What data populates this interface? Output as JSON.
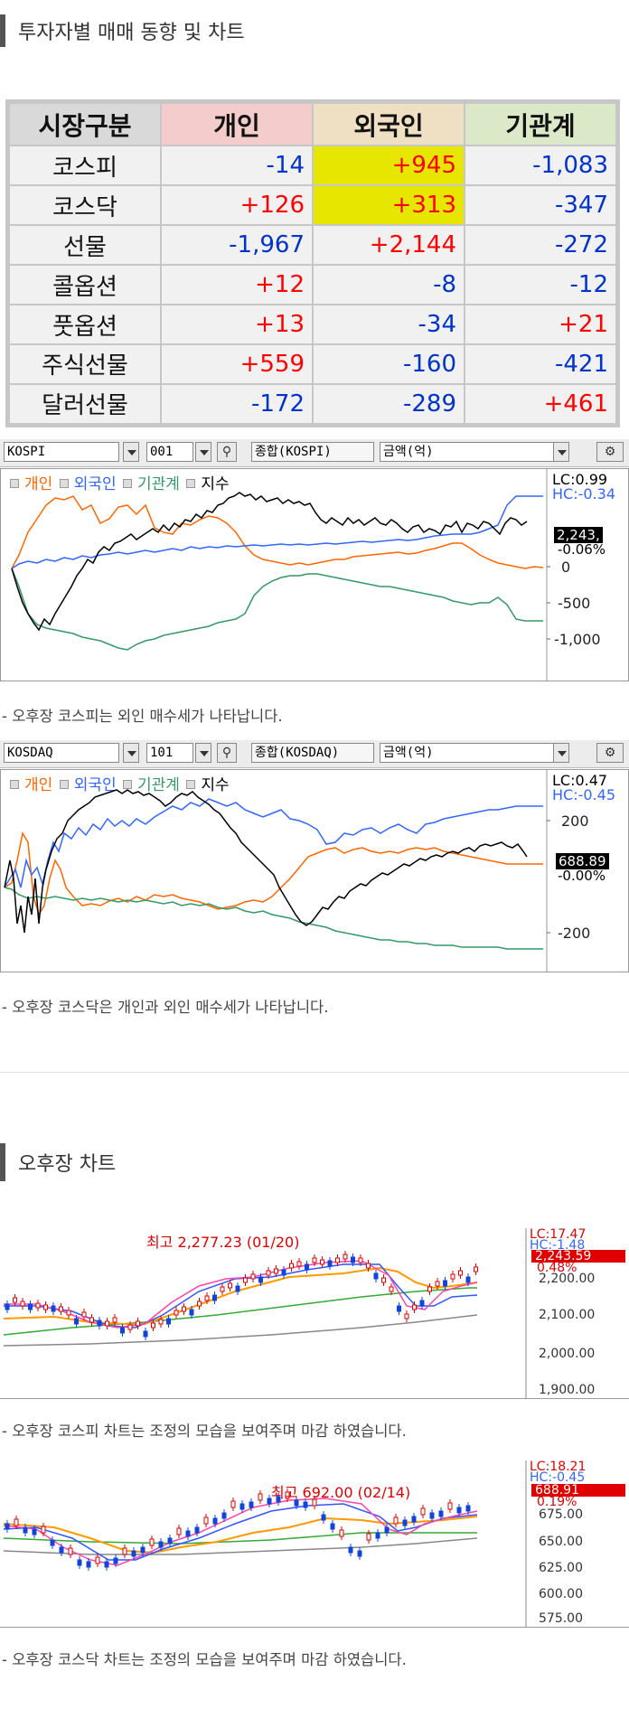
{
  "section1": {
    "title": "투자자별 매매 동향 및 차트"
  },
  "investor_table": {
    "headers": [
      "시장구분",
      "개인",
      "외국인",
      "기관계"
    ],
    "header_colors": [
      "#d9d9d9",
      "#f4cccc",
      "#efe0c4",
      "#dce9c9"
    ],
    "rows": [
      {
        "label": "코스피",
        "cells": [
          "-14",
          "+945",
          "-1,083"
        ],
        "highlight": [
          false,
          true,
          false
        ]
      },
      {
        "label": "코스닥",
        "cells": [
          "+126",
          "+313",
          "-347"
        ],
        "highlight": [
          false,
          true,
          false
        ]
      },
      {
        "label": "선물",
        "cells": [
          "-1,967",
          "+2,144",
          "-272"
        ],
        "highlight": [
          false,
          false,
          false
        ]
      },
      {
        "label": "콜옵션",
        "cells": [
          "+12",
          "-8",
          "-12"
        ],
        "highlight": [
          false,
          false,
          false
        ]
      },
      {
        "label": "풋옵션",
        "cells": [
          "+13",
          "-34",
          "+21"
        ],
        "highlight": [
          false,
          false,
          false
        ]
      },
      {
        "label": "주식선물",
        "cells": [
          "+559",
          "-160",
          "-421"
        ],
        "highlight": [
          false,
          false,
          false
        ]
      },
      {
        "label": "달러선물",
        "cells": [
          "-172",
          "-289",
          "+461"
        ],
        "highlight": [
          false,
          false,
          false
        ]
      }
    ],
    "positive_color": "#ff0000",
    "negative_color": "#0033cc"
  },
  "kospi_flow": {
    "market_code": "KOSPI",
    "item_code": "001",
    "index_name": "종합(KOSPI)",
    "unit": "금액(억)",
    "legend": [
      "개인",
      "외국인",
      "기관계",
      "지수"
    ],
    "legend_colors": [
      "#ff6600",
      "#3366ff",
      "#339966",
      "#000000"
    ],
    "lc": "LC:0.99",
    "hc": "HC:-0.34",
    "index_value": "2,243,",
    "change": "-0.06%",
    "y_ticks": [
      "0",
      "-500",
      "-1,000"
    ],
    "caption": "-  오후장 코스피는 외인 매수세가 나타납니다."
  },
  "kosdaq_flow": {
    "market_code": "KOSDAQ",
    "item_code": "101",
    "index_name": "종합(KOSDAQ)",
    "unit": "금액(억)",
    "legend": [
      "개인",
      "외국인",
      "기관계",
      "지수"
    ],
    "legend_colors": [
      "#ff6600",
      "#3366ff",
      "#339966",
      "#000000"
    ],
    "lc": "LC:0.47",
    "hc": "HC:-0.45",
    "index_value": "688.89",
    "change": "-0.00%",
    "y_ticks": [
      "200",
      "-200"
    ],
    "caption": "- 오후장 코스닥은 개인과 외인 매수세가 나타납니다."
  },
  "section2": {
    "title": "오후장 차트"
  },
  "kospi_candle": {
    "high_label": "최고 2,277.23 (01/20)",
    "lc": "LC:17.47",
    "hc": "HC:-1.48",
    "price": "2,243.59",
    "change": "0.48%",
    "y_ticks": [
      "2,200.00",
      "2,100.00",
      "2,000.00",
      "1,900.00"
    ],
    "caption": "- 오후장 코스피 차트는 조정의 모습을 보여주며 마감 하였습니다."
  },
  "kosdaq_candle": {
    "high_label": "최고 692.00 (02/14)",
    "lc": "LC:18.21",
    "hc": "HC:-0.45",
    "price": "688.91",
    "change": "0.19%",
    "y_ticks": [
      "675.00",
      "650.00",
      "625.00",
      "600.00",
      "575.00"
    ],
    "caption": "- 오후장 코스닥 차트는 조정의 모습을 보여주며 마감 하였습니다."
  }
}
